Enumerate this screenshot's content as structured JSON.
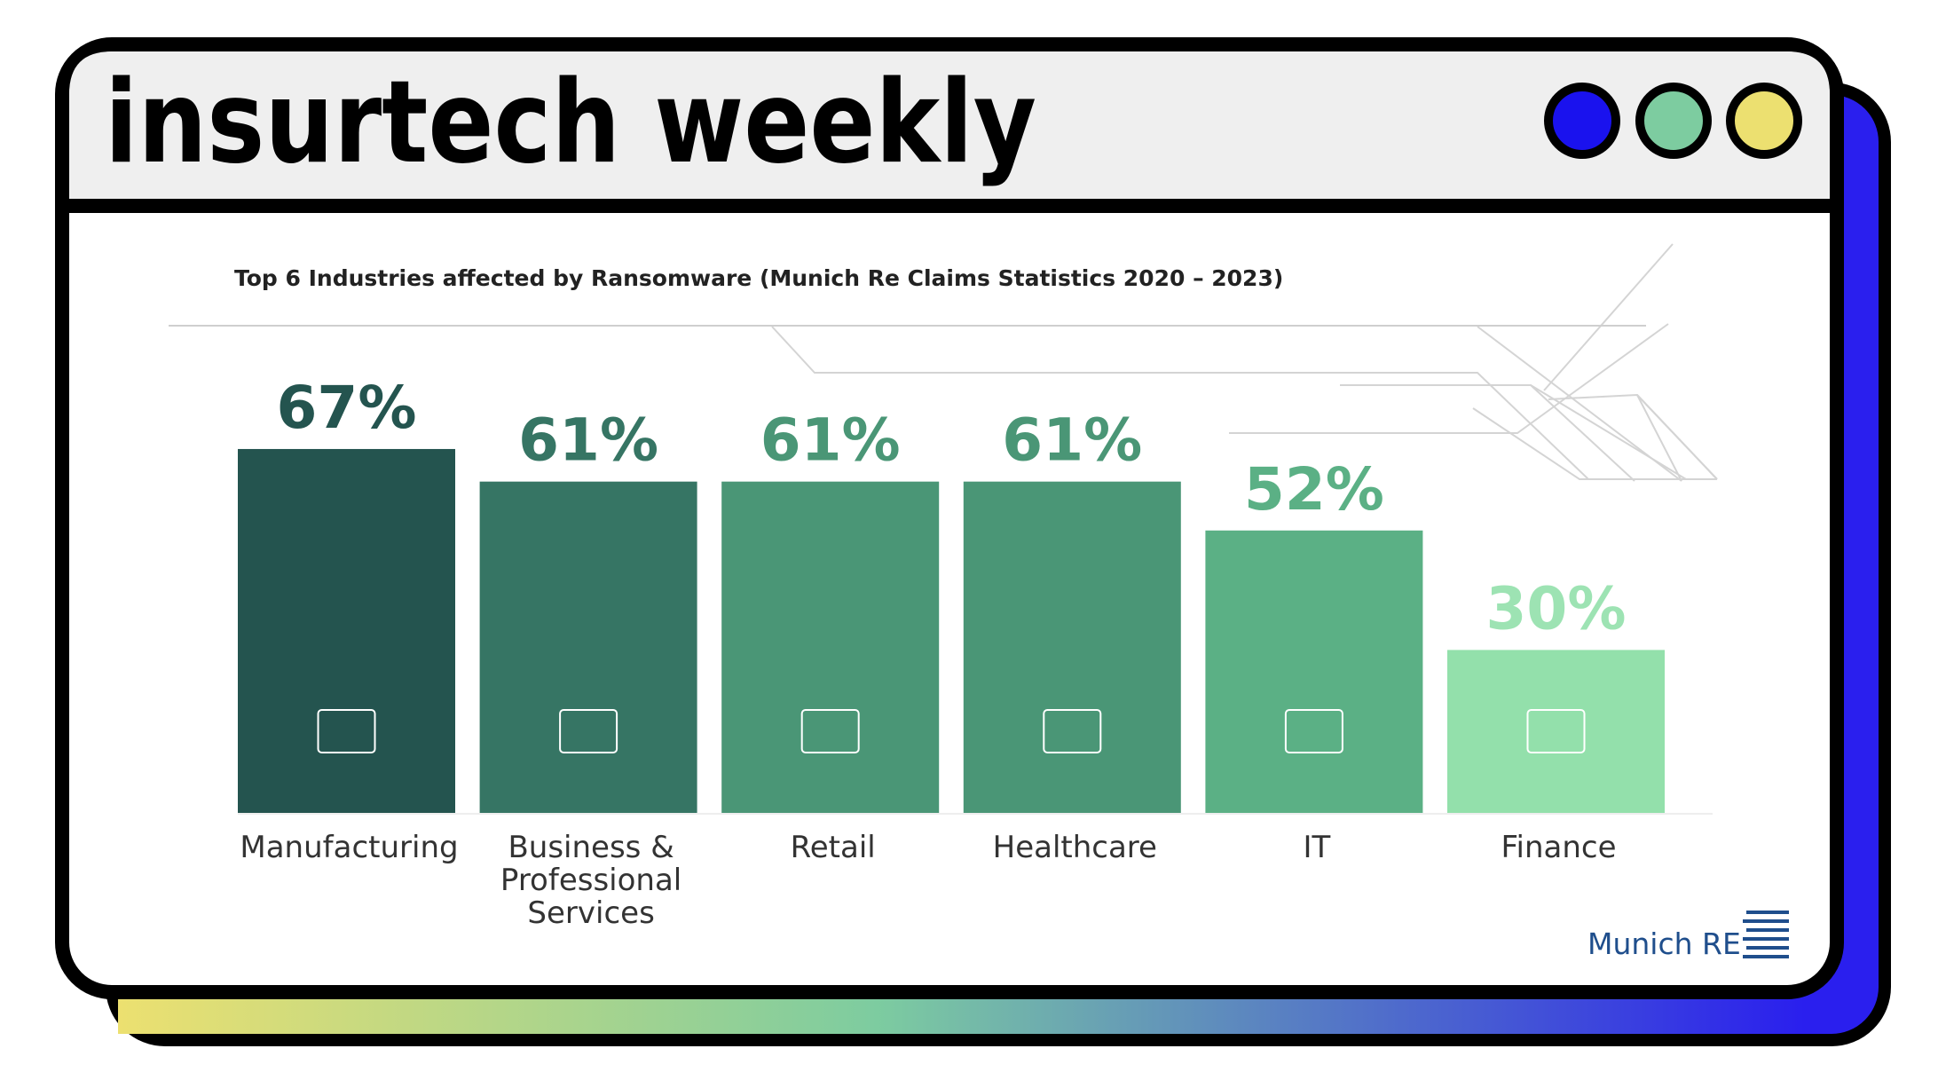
{
  "header": {
    "title": "insurtech weekly"
  },
  "chart_data": {
    "type": "bar",
    "title": "Top 6 Industries affected by Ransomware (Munich Re Claims Statistics 2020 – 2023)",
    "categories": [
      "Manufacturing",
      "Business & Professional Services",
      "Retail",
      "Healthcare",
      "IT",
      "Finance"
    ],
    "values": [
      67,
      61,
      61,
      61,
      52,
      30
    ],
    "value_labels": [
      "67%",
      "61%",
      "61%",
      "61%",
      "52%",
      "30%"
    ],
    "colors": [
      "#24544f",
      "#367564",
      "#4a9676",
      "#4a9676",
      "#5bb085",
      "#93e0ab"
    ],
    "label_colors": [
      "#24544f",
      "#367564",
      "#4a9676",
      "#4a9676",
      "#5bb085",
      "#9de3b3"
    ]
  },
  "footer": {
    "logo": "Munich RE"
  }
}
